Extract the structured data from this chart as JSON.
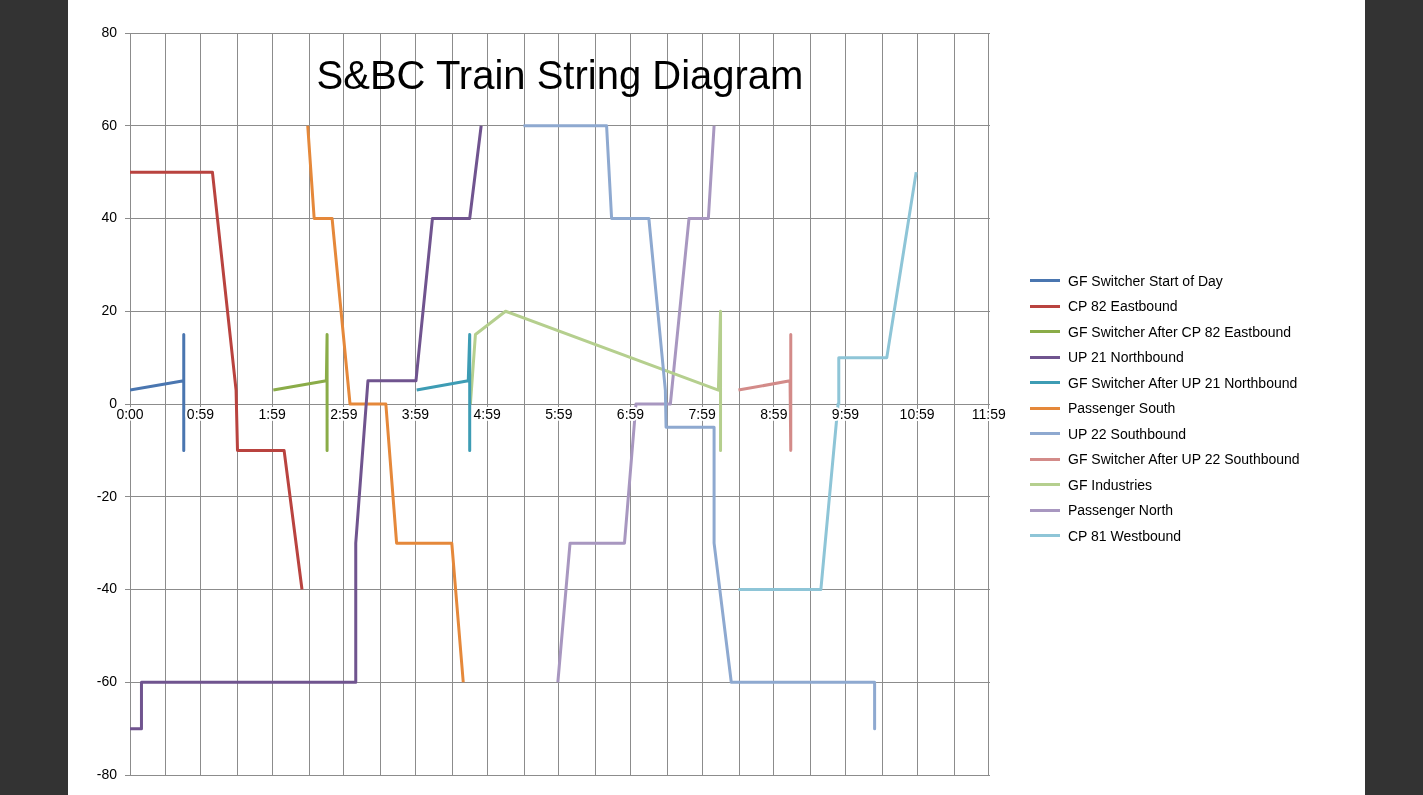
{
  "chart_data": {
    "type": "line",
    "title": "S&BC Train String Diagram",
    "marker": "none",
    "grid": true,
    "legend": "right",
    "xlim": [
      0,
      12
    ],
    "ylim": [
      -80,
      80
    ],
    "xticks": [
      {
        "value": 0,
        "label": "0:00"
      },
      {
        "value": 0.5,
        "label": null
      },
      {
        "value": 0.9833,
        "label": "0:59"
      },
      {
        "value": 1.5,
        "label": null
      },
      {
        "value": 1.9833,
        "label": "1:59"
      },
      {
        "value": 2.5,
        "label": null
      },
      {
        "value": 2.9833,
        "label": "2:59"
      },
      {
        "value": 3.5,
        "label": null
      },
      {
        "value": 3.9833,
        "label": "3:59"
      },
      {
        "value": 4.5,
        "label": null
      },
      {
        "value": 4.9833,
        "label": "4:59"
      },
      {
        "value": 5.5,
        "label": null
      },
      {
        "value": 5.9833,
        "label": "5:59"
      },
      {
        "value": 6.5,
        "label": null
      },
      {
        "value": 6.9833,
        "label": "6:59"
      },
      {
        "value": 7.5,
        "label": null
      },
      {
        "value": 7.9833,
        "label": "7:59"
      },
      {
        "value": 8.5,
        "label": null
      },
      {
        "value": 8.9833,
        "label": "8:59"
      },
      {
        "value": 9.5,
        "label": null
      },
      {
        "value": 9.9833,
        "label": "9:59"
      },
      {
        "value": 10.5,
        "label": null
      },
      {
        "value": 10.9833,
        "label": "10:59"
      },
      {
        "value": 11.5,
        "label": null
      },
      {
        "value": 11.9833,
        "label": "11:59"
      }
    ],
    "yticks": [
      -80,
      -60,
      -40,
      -20,
      0,
      20,
      40,
      60,
      80
    ],
    "series": [
      {
        "name": "GF Switcher Start of Day",
        "color": "#4a76b0",
        "x": [
          0,
          0.75,
          0.75,
          0.75
        ],
        "values": [
          3,
          5,
          15,
          -10
        ]
      },
      {
        "name": "CP 82 Eastbound",
        "color": "#b9433f",
        "x": [
          0,
          1.15,
          1.48,
          1.5,
          2.15,
          2.4
        ],
        "values": [
          50,
          50,
          3,
          -10,
          -10,
          -40
        ]
      },
      {
        "name": "GF Switcher After CP 82 Eastbound",
        "color": "#8aac48",
        "x": [
          2,
          2.74,
          2.75,
          2.75
        ],
        "values": [
          3,
          5,
          15,
          -10
        ]
      },
      {
        "name": "UP 21 Northbound",
        "color": "#70548f",
        "x": [
          0,
          0.16,
          0.16,
          3.15,
          3.15,
          3.32,
          3.99,
          4.22,
          4.74,
          4.9
        ],
        "values": [
          -70,
          -70,
          -60,
          -60,
          -30,
          5,
          5,
          40,
          40,
          60
        ]
      },
      {
        "name": "GF Switcher After UP 21 Northbound",
        "color": "#3d9cb4",
        "x": [
          4,
          4.72,
          4.74,
          4.74
        ],
        "values": [
          3,
          5,
          15,
          -10
        ]
      },
      {
        "name": "Passenger South",
        "color": "#e5883a",
        "x": [
          2.48,
          2.57,
          2.82,
          3.07,
          3.57,
          3.72,
          4.49,
          4.65
        ],
        "values": [
          60,
          40,
          40,
          0,
          0,
          -30,
          -30,
          -60
        ]
      },
      {
        "name": "UP 22 Southbound",
        "color": "#8ea9d0",
        "x": [
          5.49,
          6.65,
          6.72,
          7.24,
          7.47,
          7.48,
          8.15,
          8.15,
          8.39,
          10.39,
          10.39
        ],
        "values": [
          60,
          60,
          40,
          40,
          3,
          -5,
          -5,
          -30,
          -60,
          -60,
          -70
        ]
      },
      {
        "name": "GF Switcher After UP 22 Southbound",
        "color": "#d38b89",
        "x": [
          8.49,
          9.21,
          9.22,
          9.22
        ],
        "values": [
          3,
          5,
          15,
          -10
        ]
      },
      {
        "name": "GF Industries",
        "color": "#b5cf8e",
        "x": [
          4.75,
          4.82,
          5.24,
          8.21,
          8.24,
          8.24,
          8.24
        ],
        "values": [
          0,
          15,
          20,
          3,
          20,
          -10,
          10
        ]
      },
      {
        "name": "Passenger North",
        "color": "#a897c0",
        "x": [
          5.97,
          6.14,
          6.9,
          7.06,
          7.54,
          7.8,
          8.07,
          8.15
        ],
        "values": [
          -60,
          -30,
          -30,
          0,
          0,
          40,
          40,
          60
        ]
      },
      {
        "name": "CP 81 Westbound",
        "color": "#8ec5d7",
        "x": [
          8.49,
          9.64,
          9.88,
          9.89,
          10.56,
          10.97
        ],
        "values": [
          -40,
          -40,
          0,
          10,
          10,
          50
        ]
      }
    ]
  }
}
